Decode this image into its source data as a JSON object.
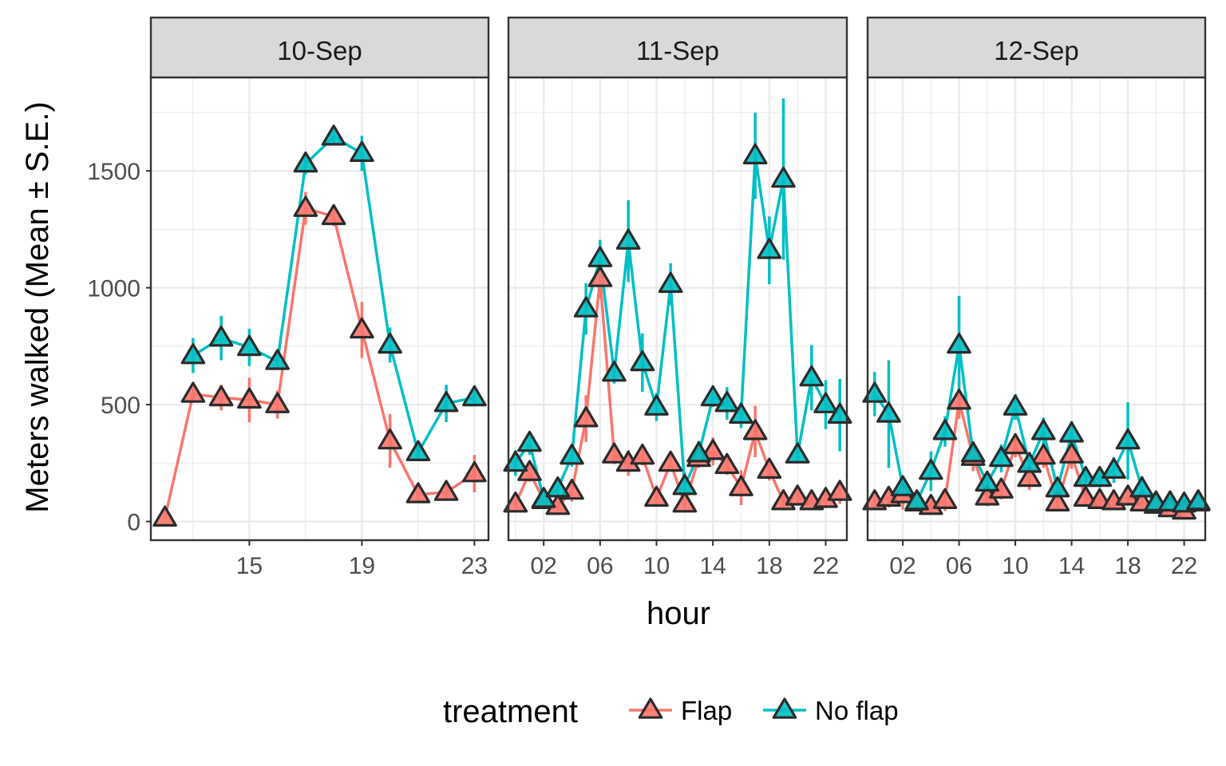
{
  "chart_data": {
    "type": "line",
    "xlabel": "hour",
    "ylabel": "Meters walked (Mean ± S.E.)",
    "ylim": [
      -80,
      1900
    ],
    "y_ticks": [
      0,
      500,
      1000,
      1500
    ],
    "y_tick_labels": [
      "0",
      "500",
      "1000",
      "1500"
    ],
    "grid": true,
    "legend": {
      "title": "treatment",
      "position": "bottom",
      "entries": [
        {
          "label": "Flap",
          "color": "#F8766D"
        },
        {
          "label": "No flap",
          "color": "#00BFC4"
        }
      ]
    },
    "marker": "triangle",
    "colors": {
      "Flap": "#F8766D",
      "No flap": "#00BFC4",
      "marker_outline": "#2b2b2b",
      "strip_fill": "#d9d9d9",
      "panel_border": "#333333",
      "grid": "#ebebeb"
    },
    "panels": [
      {
        "strip": "10-Sep",
        "xlim": [
          11.5,
          23.5
        ],
        "x_ticks": [
          15,
          19,
          23
        ],
        "x_tick_labels": [
          "15",
          "19",
          "23"
        ],
        "series": [
          {
            "name": "Flap",
            "x": [
              12,
              13,
              14,
              15,
              16,
              17,
              18,
              19,
              20,
              21,
              22,
              23
            ],
            "y": [
              15,
              545,
              530,
              520,
              500,
              1340,
              1305,
              820,
              345,
              115,
              125,
              205
            ],
            "se": [
              0,
              30,
              55,
              95,
              60,
              70,
              40,
              120,
              115,
              35,
              30,
              80
            ]
          },
          {
            "name": "No flap",
            "x": [
              13,
              14,
              15,
              16,
              17,
              18,
              19,
              20,
              21,
              22,
              23
            ],
            "y": [
              710,
              785,
              745,
              685,
              1530,
              1645,
              1575,
              755,
              295,
              505,
              530
            ],
            "se": [
              75,
              95,
              80,
              30,
              45,
              30,
              75,
              75,
              30,
              80,
              35
            ]
          }
        ]
      },
      {
        "strip": "11-Sep",
        "xlim": [
          -0.5,
          23.5
        ],
        "x_ticks": [
          2,
          6,
          10,
          14,
          18,
          22
        ],
        "x_tick_labels": [
          "02",
          "06",
          "10",
          "14",
          "18",
          "22"
        ],
        "series": [
          {
            "name": "Flap",
            "x": [
              0,
              1,
              2,
              3,
              4,
              5,
              6,
              7,
              8,
              9,
              10,
              11,
              12,
              13,
              14,
              15,
              16,
              17,
              18,
              19,
              20,
              21,
              22,
              23
            ],
            "y": [
              75,
              210,
              90,
              65,
              130,
              440,
              1040,
              285,
              250,
              280,
              100,
              250,
              75,
              270,
              300,
              240,
              145,
              385,
              220,
              85,
              105,
              85,
              95,
              125
            ],
            "se": [
              20,
              40,
              20,
              20,
              45,
              100,
              85,
              40,
              55,
              40,
              35,
              35,
              20,
              40,
              60,
              40,
              75,
              110,
              45,
              30,
              30,
              20,
              30,
              50
            ]
          },
          {
            "name": "No flap",
            "x": [
              0,
              1,
              2,
              3,
              4,
              5,
              6,
              7,
              8,
              9,
              10,
              11,
              12,
              13,
              14,
              15,
              16,
              17,
              18,
              19,
              20,
              21,
              22,
              23
            ],
            "y": [
              250,
              335,
              95,
              140,
              280,
              910,
              1125,
              635,
              1200,
              680,
              490,
              1015,
              150,
              290,
              530,
              505,
              455,
              1565,
              1160,
              1465,
              285,
              615,
              500,
              455
            ],
            "se": [
              55,
              50,
              35,
              35,
              45,
              110,
              80,
              45,
              175,
              125,
              60,
              90,
              60,
              55,
              40,
              70,
              55,
              185,
              145,
              345,
              35,
              140,
              105,
              155
            ]
          }
        ]
      },
      {
        "strip": "12-Sep",
        "xlim": [
          -0.5,
          23.5
        ],
        "x_ticks": [
          2,
          6,
          10,
          14,
          18,
          22
        ],
        "x_tick_labels": [
          "02",
          "06",
          "10",
          "14",
          "18",
          "22"
        ],
        "series": [
          {
            "name": "Flap",
            "x": [
              0,
              1,
              2,
              3,
              4,
              5,
              6,
              7,
              8,
              9,
              10,
              11,
              12,
              13,
              14,
              15,
              16,
              17,
              18,
              19,
              20,
              21,
              22,
              23
            ],
            "y": [
              85,
              100,
              115,
              80,
              65,
              90,
              515,
              275,
              105,
              135,
              325,
              185,
              280,
              80,
              285,
              100,
              90,
              85,
              105,
              80,
              70,
              55,
              45,
              80
            ],
            "se": [
              25,
              40,
              65,
              25,
              25,
              45,
              75,
              60,
              40,
              40,
              50,
              50,
              50,
              25,
              60,
              30,
              25,
              30,
              35,
              25,
              20,
              15,
              15,
              25
            ]
          },
          {
            "name": "No flap",
            "x": [
              0,
              1,
              2,
              3,
              4,
              5,
              6,
              7,
              8,
              9,
              10,
              11,
              12,
              13,
              14,
              15,
              16,
              17,
              18,
              19,
              20,
              21,
              22,
              23
            ],
            "y": [
              545,
              460,
              145,
              85,
              215,
              385,
              755,
              290,
              165,
              270,
              490,
              245,
              385,
              140,
              375,
              185,
              185,
              220,
              345,
              140,
              80,
              80,
              75,
              85
            ],
            "se": [
              95,
              230,
              40,
              30,
              85,
              65,
              210,
              50,
              45,
              60,
              55,
              40,
              60,
              40,
              55,
              40,
              40,
              55,
              165,
              55,
              20,
              20,
              20,
              20
            ]
          }
        ]
      }
    ]
  }
}
